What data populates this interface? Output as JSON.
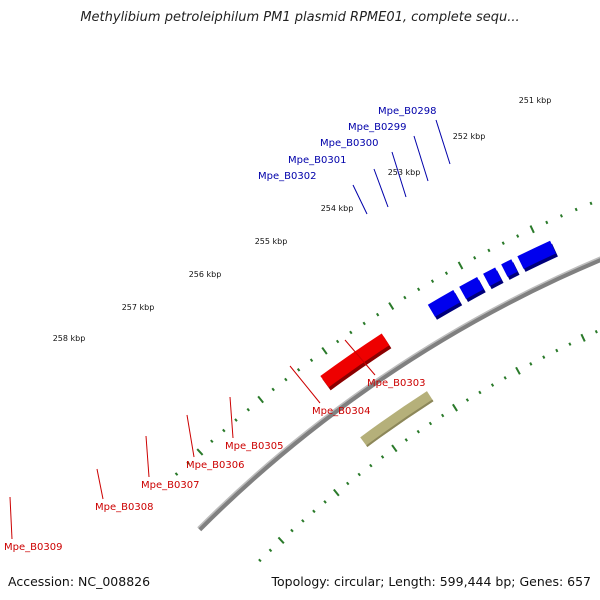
{
  "title": "Methylibium petroleiphilum PM1 plasmid RPME01, complete sequ...",
  "footer": {
    "accession": "Accession: NC_008826",
    "summary": "Topology: circular; Length: 599,444 bp; Genes: 657"
  },
  "colors": {
    "backbone": "#808080",
    "forward_gene": "#0000ee",
    "reverse_gene": "#ee0000",
    "forward_label": "#0000aa",
    "reverse_label": "#cc0000",
    "tick": "#2a7a2a",
    "feature_olive": "#b5b07a",
    "feature_green": "#2e8b2e",
    "feature_lime": "#a6e02a"
  },
  "scale_labels": [
    "251 kbp",
    "252 kbp",
    "253 kbp",
    "254 kbp",
    "255 kbp",
    "256 kbp",
    "257 kbp",
    "258 kbp"
  ],
  "forward_genes": [
    "Mpe_B0298",
    "Mpe_B0299",
    "Mpe_B0300",
    "Mpe_B0301",
    "Mpe_B0302"
  ],
  "reverse_genes": [
    "Mpe_B0303",
    "Mpe_B0304",
    "Mpe_B0305",
    "Mpe_B0306",
    "Mpe_B0307",
    "Mpe_B0308",
    "Mpe_B0309"
  ]
}
